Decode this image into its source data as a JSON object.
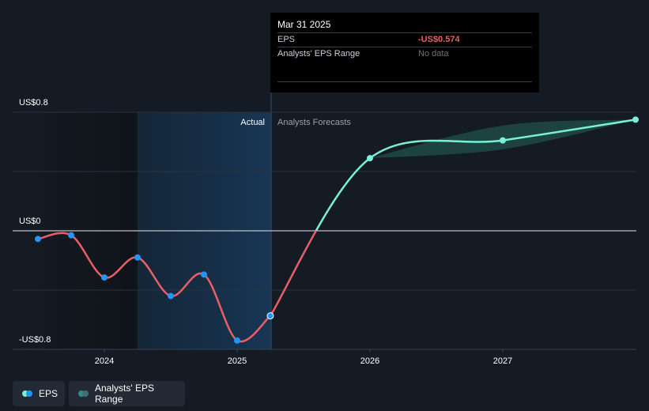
{
  "chart_data": {
    "type": "line",
    "y_tick_labels": [
      "US$0.8",
      "US$0",
      "-US$0.8"
    ],
    "x_tick_labels": [
      "2024",
      "2025",
      "2026",
      "2027"
    ],
    "region_labels": {
      "actual": "Actual",
      "forecast": "Analysts Forecasts"
    },
    "ylim": [
      -0.8,
      0.8
    ],
    "series": [
      {
        "name": "EPS",
        "color_negative": "#e85f65",
        "color_positive": "#7af0d6",
        "points": [
          {
            "x": 2023.5,
            "y": -0.055
          },
          {
            "x": 2023.75,
            "y": -0.03
          },
          {
            "x": 2024.0,
            "y": -0.315
          },
          {
            "x": 2024.25,
            "y": -0.18
          },
          {
            "x": 2024.5,
            "y": -0.44
          },
          {
            "x": 2024.75,
            "y": -0.295
          },
          {
            "x": 2025.0,
            "y": -0.74
          },
          {
            "x": 2025.25,
            "y": -0.574
          }
        ],
        "forecast": [
          {
            "x": 2025.25,
            "y": -0.574
          },
          {
            "x": 2026.0,
            "y": 0.49
          },
          {
            "x": 2027.0,
            "y": 0.61
          },
          {
            "x": 2028.0,
            "y": 0.75
          }
        ]
      }
    ],
    "range": {
      "name": "Analysts' EPS Range",
      "upper": [
        {
          "x": 2026.0,
          "y": 0.49
        },
        {
          "x": 2027.0,
          "y": 0.71
        },
        {
          "x": 2028.0,
          "y": 0.75
        }
      ],
      "lower": [
        {
          "x": 2026.0,
          "y": 0.49
        },
        {
          "x": 2027.0,
          "y": 0.55
        },
        {
          "x": 2028.0,
          "y": 0.75
        }
      ]
    },
    "legend_placement": "bottom-left"
  },
  "tooltip": {
    "date": "Mar 31 2025",
    "rows": [
      {
        "label": "EPS",
        "value": "-US$0.574"
      },
      {
        "label": "Analysts' EPS Range",
        "value": "No data"
      }
    ]
  },
  "legend": [
    {
      "label": "EPS",
      "colors": [
        "#7af0d6",
        "#2196f3"
      ]
    },
    {
      "label": "Analysts' EPS Range",
      "colors": [
        "#2a8f7c",
        "#3f6f7a"
      ]
    }
  ]
}
